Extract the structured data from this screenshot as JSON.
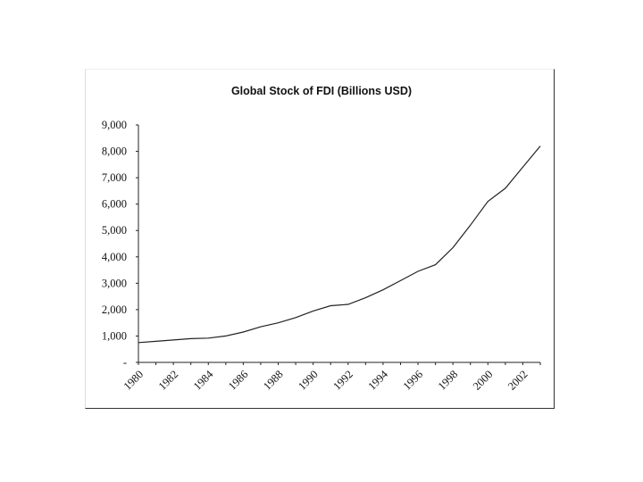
{
  "chart_data": {
    "type": "line",
    "title": "Global Stock of FDI (Billions USD)",
    "xlabel": "",
    "ylabel": "",
    "x": [
      1980,
      1981,
      1982,
      1983,
      1984,
      1985,
      1986,
      1987,
      1988,
      1989,
      1990,
      1991,
      1992,
      1993,
      1994,
      1995,
      1996,
      1997,
      1998,
      1999,
      2000,
      2001,
      2002,
      2003
    ],
    "series": [
      {
        "values": [
          750,
          800,
          850,
          900,
          920,
          1000,
          1150,
          1350,
          1500,
          1700,
          1950,
          2150,
          2200,
          2450,
          2750,
          3100,
          3450,
          3700,
          4350,
          5200,
          6100,
          6600,
          7400,
          8200
        ]
      }
    ],
    "ylim": [
      0,
      9000
    ],
    "y_ticks": [
      0,
      1000,
      2000,
      3000,
      4000,
      5000,
      6000,
      7000,
      8000,
      9000
    ],
    "y_tick_labels": [
      "-",
      "1,000",
      "2,000",
      "3,000",
      "4,000",
      "5,000",
      "6,000",
      "7,000",
      "8,000",
      "9,000"
    ],
    "x_tick_labels": [
      "1980",
      "1982",
      "1984",
      "1986",
      "1988",
      "1990",
      "1992",
      "1994",
      "1996",
      "1998",
      "2000",
      "2002"
    ],
    "x_tick_values": [
      1980,
      1982,
      1984,
      1986,
      1988,
      1990,
      1992,
      1994,
      1996,
      1998,
      2000,
      2002
    ],
    "grid": false,
    "legend": "none",
    "line_color": "#222222"
  }
}
